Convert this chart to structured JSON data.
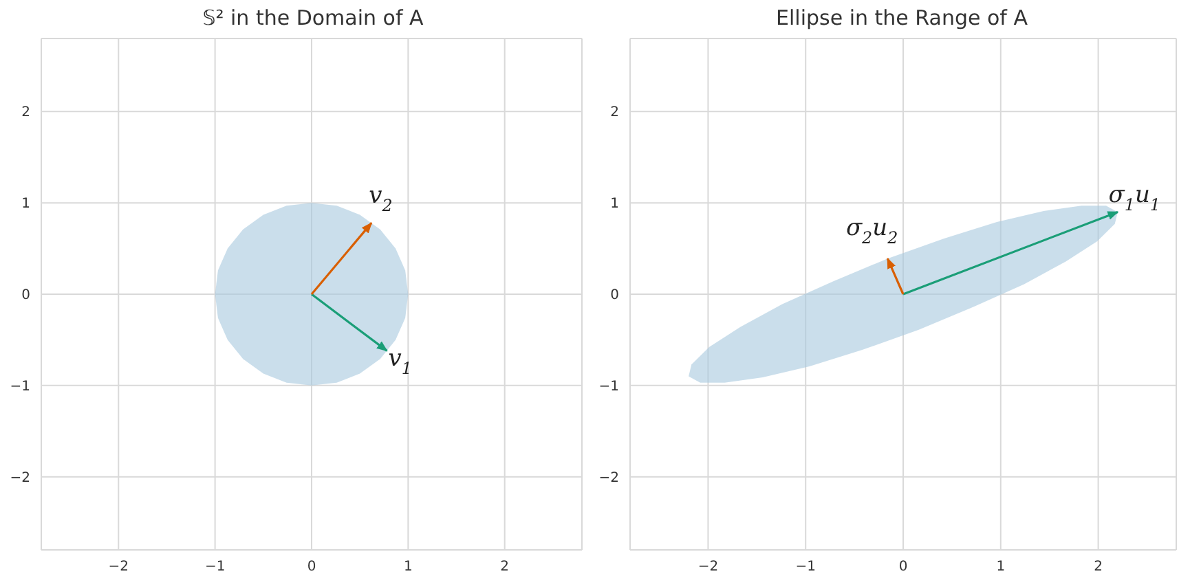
{
  "chart_data": [
    {
      "type": "line",
      "title": "𝕊² in the Domain of A",
      "xlim": [
        -2.8,
        2.8
      ],
      "ylim": [
        -2.8,
        2.8
      ],
      "xticks": [
        -2,
        -1,
        0,
        1,
        2
      ],
      "yticks": [
        -2,
        -1,
        0,
        1,
        2
      ],
      "grid": true,
      "series": [
        {
          "type": "area",
          "color": "#a6c8de",
          "x": [
            1,
            0.97,
            0.87,
            0.71,
            0.5,
            0.26,
            0,
            -0.26,
            -0.5,
            -0.71,
            -0.87,
            -0.97,
            -1,
            -0.97,
            -0.87,
            -0.71,
            -0.5,
            -0.26,
            0,
            0.26,
            0.5,
            0.71,
            0.87,
            0.97,
            1
          ],
          "values": [
            0,
            0.26,
            0.5,
            0.71,
            0.87,
            0.97,
            1,
            0.97,
            0.87,
            0.71,
            0.5,
            0.26,
            0,
            -0.26,
            -0.5,
            -0.71,
            -0.87,
            -0.97,
            -1,
            -0.97,
            -0.87,
            -0.71,
            -0.5,
            -0.26,
            0
          ]
        },
        {
          "name": "v$_{1}$",
          "color": "#1a9e77",
          "x": [
            0,
            0.78
          ],
          "values": [
            0,
            -0.62
          ]
        },
        {
          "name": "v$_{2}$",
          "color": "#d95f02",
          "x": [
            0,
            0.62
          ],
          "values": [
            0,
            0.78
          ]
        }
      ]
    },
    {
      "type": "line",
      "title": "Ellipse in the Range of A",
      "xlim": [
        -2.8,
        2.8
      ],
      "ylim": [
        -2.8,
        2.8
      ],
      "xticks": [
        -2,
        -1,
        0,
        1,
        2
      ],
      "yticks": [
        -2,
        -1,
        0,
        1,
        2
      ],
      "grid": true,
      "series": [
        {
          "type": "area",
          "color": "#a6c8de",
          "x": [
            2.2,
            2.08,
            1.83,
            1.44,
            0.96,
            0.42,
            -0.16,
            -0.72,
            -1.24,
            -1.67,
            -1.99,
            -2.17,
            -2.2,
            -2.08,
            -1.83,
            -1.44,
            -0.96,
            -0.42,
            0.16,
            0.72,
            1.24,
            1.67,
            1.99,
            2.17,
            2.2
          ],
          "values": [
            0.9,
            0.97,
            0.97,
            0.91,
            0.79,
            0.61,
            0.39,
            0.14,
            -0.11,
            -0.36,
            -0.58,
            -0.77,
            -0.9,
            -0.97,
            -0.97,
            -0.91,
            -0.79,
            -0.61,
            -0.39,
            -0.14,
            0.11,
            0.36,
            0.58,
            0.77,
            0.9
          ]
        },
        {
          "name": "σ$_{1}$u$_{1}$",
          "color": "#1a9e77",
          "x": [
            0,
            2.2
          ],
          "values": [
            0,
            0.9
          ]
        },
        {
          "name": "σ$_{2}$u$_{2}$",
          "color": "#d95f02",
          "x": [
            0,
            -0.16
          ],
          "values": [
            0,
            0.39
          ]
        }
      ]
    }
  ]
}
